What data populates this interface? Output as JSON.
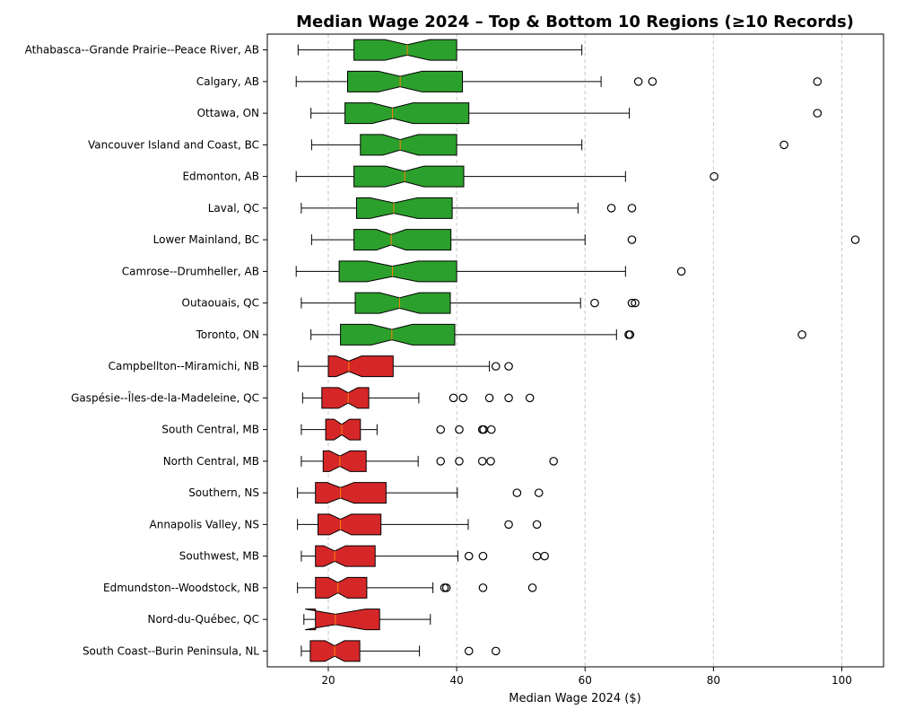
{
  "chart_data": {
    "type": "boxplot",
    "title": "Median Wage 2024 – Top & Bottom 10 Regions (≥10 Records)",
    "xlabel": "Median Wage 2024 ($)",
    "ylabel": "",
    "xlim": [
      10.5,
      106.5
    ],
    "xticks": [
      20,
      40,
      60,
      80,
      100
    ],
    "grid": "x dashed",
    "colors": {
      "top": "#2ca02c",
      "bottom": "#d62728",
      "median": "#ff7f0e"
    },
    "regions": [
      {
        "name": "Athabasca--Grande Prairie--Peace River, AB",
        "group": "top",
        "whislo": 15.3,
        "q1": 24.0,
        "med": 32.3,
        "q3": 40.0,
        "whishi": 59.5,
        "notchlo": 28.8,
        "notchhi": 35.8,
        "fliers": []
      },
      {
        "name": "Calgary, AB",
        "group": "top",
        "whislo": 15.0,
        "q1": 23.0,
        "med": 31.2,
        "q3": 40.9,
        "whishi": 62.5,
        "notchlo": 27.8,
        "notchhi": 34.6,
        "fliers": [
          68.3,
          70.5,
          96.2
        ]
      },
      {
        "name": "Ottawa, ON",
        "group": "top",
        "whislo": 17.3,
        "q1": 22.6,
        "med": 30.0,
        "q3": 41.9,
        "whishi": 66.9,
        "notchlo": 26.8,
        "notchhi": 33.2,
        "fliers": [
          96.2
        ]
      },
      {
        "name": "Vancouver Island and Coast, BC",
        "group": "top",
        "whislo": 17.4,
        "q1": 25.0,
        "med": 31.2,
        "q3": 40.0,
        "whishi": 59.5,
        "notchlo": 28.5,
        "notchhi": 34.0,
        "fliers": [
          91.0
        ]
      },
      {
        "name": "Edmonton, AB",
        "group": "top",
        "whislo": 15.0,
        "q1": 24.0,
        "med": 31.9,
        "q3": 41.1,
        "whishi": 66.3,
        "notchlo": 28.9,
        "notchhi": 34.9,
        "fliers": [
          80.1
        ]
      },
      {
        "name": "Laval, QC",
        "group": "top",
        "whislo": 15.8,
        "q1": 24.4,
        "med": 30.2,
        "q3": 39.3,
        "whishi": 58.9,
        "notchlo": 26.5,
        "notchhi": 33.9,
        "fliers": [
          64.1,
          67.3
        ]
      },
      {
        "name": "Lower Mainland, BC",
        "group": "top",
        "whislo": 17.4,
        "q1": 24.0,
        "med": 29.8,
        "q3": 39.1,
        "whishi": 60.0,
        "notchlo": 27.5,
        "notchhi": 32.1,
        "fliers": [
          67.3,
          102.1
        ]
      },
      {
        "name": "Camrose--Drumheller, AB",
        "group": "top",
        "whislo": 15.0,
        "q1": 21.7,
        "med": 30.0,
        "q3": 40.0,
        "whishi": 66.3,
        "notchlo": 26.0,
        "notchhi": 34.0,
        "fliers": [
          75.0
        ]
      },
      {
        "name": "Outaouais, QC",
        "group": "top",
        "whislo": 15.8,
        "q1": 24.2,
        "med": 31.1,
        "q3": 39.0,
        "whishi": 59.3,
        "notchlo": 28.0,
        "notchhi": 34.2,
        "fliers": [
          61.5,
          67.3,
          67.8
        ]
      },
      {
        "name": "Toronto, ON",
        "group": "top",
        "whislo": 17.3,
        "q1": 21.9,
        "med": 29.9,
        "q3": 39.7,
        "whishi": 64.9,
        "notchlo": 26.7,
        "notchhi": 33.1,
        "fliers": [
          66.8,
          67.0,
          93.8
        ]
      },
      {
        "name": "Campbellton--Miramichi, NB",
        "group": "bottom",
        "whislo": 15.3,
        "q1": 20.0,
        "med": 23.2,
        "q3": 30.1,
        "whishi": 45.1,
        "notchlo": 21.2,
        "notchhi": 25.2,
        "fliers": [
          46.1,
          48.1
        ]
      },
      {
        "name": "Gaspésie--Îles-de-la-Madeleine, QC",
        "group": "bottom",
        "whislo": 16.0,
        "q1": 19.0,
        "med": 23.1,
        "q3": 26.3,
        "whishi": 34.1,
        "notchlo": 21.6,
        "notchhi": 24.6,
        "fliers": [
          39.5,
          41.0,
          45.1,
          48.1,
          51.4
        ]
      },
      {
        "name": "South Central, MB",
        "group": "bottom",
        "whislo": 15.8,
        "q1": 19.6,
        "med": 22.1,
        "q3": 25.0,
        "whishi": 27.6,
        "notchlo": 20.9,
        "notchhi": 23.3,
        "fliers": [
          37.5,
          40.4,
          44.0,
          44.2,
          45.4
        ]
      },
      {
        "name": "North Central, MB",
        "group": "bottom",
        "whislo": 15.8,
        "q1": 19.2,
        "med": 21.8,
        "q3": 25.9,
        "whishi": 34.0,
        "notchlo": 20.2,
        "notchhi": 23.4,
        "fliers": [
          37.5,
          40.4,
          44.0,
          45.3,
          55.1
        ]
      },
      {
        "name": "Southern, NS",
        "group": "bottom",
        "whislo": 15.2,
        "q1": 18.0,
        "med": 21.9,
        "q3": 29.0,
        "whishi": 40.1,
        "notchlo": 19.8,
        "notchhi": 24.0,
        "fliers": [
          49.4,
          52.8
        ]
      },
      {
        "name": "Annapolis Valley, NS",
        "group": "bottom",
        "whislo": 15.2,
        "q1": 18.4,
        "med": 21.9,
        "q3": 28.2,
        "whishi": 41.8,
        "notchlo": 20.2,
        "notchhi": 23.6,
        "fliers": [
          48.1,
          52.5
        ]
      },
      {
        "name": "Southwest, MB",
        "group": "bottom",
        "whislo": 15.8,
        "q1": 18.0,
        "med": 21.0,
        "q3": 27.3,
        "whishi": 40.2,
        "notchlo": 19.3,
        "notchhi": 22.7,
        "fliers": [
          41.9,
          44.1,
          52.5,
          53.7
        ]
      },
      {
        "name": "Edmundston--Woodstock, NB",
        "group": "bottom",
        "whislo": 15.2,
        "q1": 18.0,
        "med": 21.5,
        "q3": 26.0,
        "whishi": 36.3,
        "notchlo": 20.0,
        "notchhi": 23.0,
        "fliers": [
          38.1,
          38.4,
          44.1,
          51.8
        ]
      },
      {
        "name": "Nord-du-Québec, QC",
        "group": "bottom",
        "whislo": 16.2,
        "q1": 18.0,
        "med": 21.1,
        "q3": 28.0,
        "whishi": 35.9,
        "notchlo": 16.4,
        "notchhi": 25.8,
        "fliers": []
      },
      {
        "name": "South Coast--Burin Peninsula, NL",
        "group": "bottom",
        "whislo": 15.8,
        "q1": 17.2,
        "med": 21.0,
        "q3": 24.9,
        "whishi": 34.2,
        "notchlo": 19.5,
        "notchhi": 22.5,
        "fliers": [
          41.9,
          46.1
        ]
      }
    ]
  }
}
